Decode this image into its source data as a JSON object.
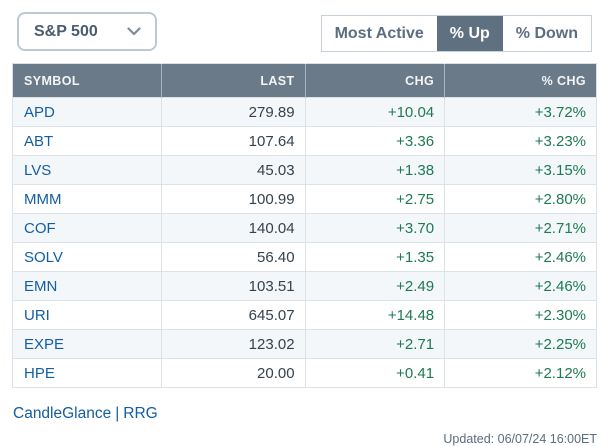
{
  "index_selector": {
    "value": "S&P 500"
  },
  "tabs": {
    "most_active": "Most Active",
    "pct_up": "% Up",
    "pct_down": "% Down",
    "active_tab": "% Up"
  },
  "table": {
    "columns": {
      "symbol": "SYMBOL",
      "last": "LAST",
      "chg": "CHG",
      "pct_chg": "% CHG"
    },
    "rows": [
      {
        "symbol": "APD",
        "last": "279.89",
        "chg": "+10.04",
        "pct_chg": "+3.72%"
      },
      {
        "symbol": "ABT",
        "last": "107.64",
        "chg": "+3.36",
        "pct_chg": "+3.23%"
      },
      {
        "symbol": "LVS",
        "last": "45.03",
        "chg": "+1.38",
        "pct_chg": "+3.15%"
      },
      {
        "symbol": "MMM",
        "last": "100.99",
        "chg": "+2.75",
        "pct_chg": "+2.80%"
      },
      {
        "symbol": "COF",
        "last": "140.04",
        "chg": "+3.70",
        "pct_chg": "+2.71%"
      },
      {
        "symbol": "SOLV",
        "last": "56.40",
        "chg": "+1.35",
        "pct_chg": "+2.46%"
      },
      {
        "symbol": "EMN",
        "last": "103.51",
        "chg": "+2.49",
        "pct_chg": "+2.46%"
      },
      {
        "symbol": "URI",
        "last": "645.07",
        "chg": "+14.48",
        "pct_chg": "+2.30%"
      },
      {
        "symbol": "EXPE",
        "last": "123.02",
        "chg": "+2.71",
        "pct_chg": "+2.25%"
      },
      {
        "symbol": "HPE",
        "last": "20.00",
        "chg": "+0.41",
        "pct_chg": "+2.12%"
      }
    ]
  },
  "footer": {
    "links": [
      {
        "label": "CandleGlance"
      },
      {
        "label": "RRG"
      }
    ],
    "separator": "|",
    "updated": "Updated: 06/07/24 16:00ET"
  },
  "colors": {
    "header_bg": "#6B7A89",
    "active_tab_bg": "#5F7081",
    "link_blue": "#135DA4",
    "positive_green": "#1E7A52",
    "row_alt_bg": "#F3F7F9",
    "border": "#D8DFE5"
  }
}
